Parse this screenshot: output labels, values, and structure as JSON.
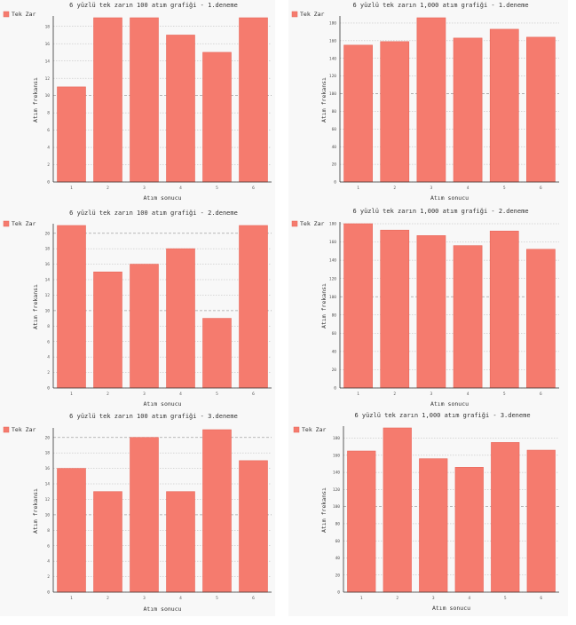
{
  "colors": {
    "bar": "#f57b6e",
    "bar_stroke": "#e8685b",
    "grid": "#9a9a9a",
    "axis": "#333333",
    "panel": "#f8f8f8"
  },
  "chart_data": [
    {
      "type": "bar",
      "title": "6 yüzlü tek zarın 100 atım grafiği - 1.deneme",
      "xlabel": "Atım sonucu",
      "ylabel": "Atım frekansı",
      "legend": "Tek Zar",
      "legend_position": "top-left",
      "categories": [
        "1",
        "2",
        "3",
        "4",
        "5",
        "6"
      ],
      "values": [
        11,
        19,
        19,
        17,
        15,
        19
      ],
      "ylim": [
        0,
        19
      ],
      "yticks": [
        0,
        2,
        4,
        6,
        8,
        10,
        12,
        14,
        16,
        18
      ],
      "ytick_labels": [
        "0",
        "2",
        "4",
        "6",
        "8",
        "10",
        "12",
        "14",
        "16",
        "18"
      ],
      "grid": true
    },
    {
      "type": "bar",
      "title": "6 yüzlü tek zarın 1,000 atım grafiği - 1.deneme",
      "xlabel": "Atım sonucu",
      "ylabel": "Atım frekansı",
      "legend": "Tek Zar",
      "legend_position": "top-left",
      "categories": [
        "1",
        "2",
        "3",
        "4",
        "5",
        "6"
      ],
      "values": [
        155,
        159,
        186,
        163,
        173,
        164
      ],
      "ylim": [
        0,
        186
      ],
      "yticks": [
        0,
        20,
        40,
        60,
        80,
        100,
        120,
        140,
        160,
        180
      ],
      "ytick_labels": [
        "0",
        "20",
        "40",
        "60",
        "80",
        "100",
        "120",
        "140",
        "160",
        "180"
      ],
      "grid": true
    },
    {
      "type": "bar",
      "title": "6 yüzlü tek zarın 100 atım grafiği - 2.deneme",
      "xlabel": "Atım sonucu",
      "ylabel": "Atım frekansı",
      "legend": "Tek Zar",
      "legend_position": "top-left",
      "categories": [
        "1",
        "2",
        "3",
        "4",
        "5",
        "6"
      ],
      "values": [
        21,
        15,
        16,
        18,
        9,
        21
      ],
      "ylim": [
        0,
        21
      ],
      "yticks": [
        0,
        2,
        4,
        6,
        8,
        10,
        12,
        14,
        16,
        18,
        20
      ],
      "ytick_labels": [
        "0",
        "2",
        "4",
        "6",
        "8",
        "10",
        "12",
        "14",
        "16",
        "18",
        "20"
      ],
      "grid": true
    },
    {
      "type": "bar",
      "title": "6 yüzlü tek zarın 1,000 atım grafiği - 2.deneme",
      "xlabel": "Atım sonucu",
      "ylabel": "Atım frekansı",
      "legend": "Tek Zar",
      "legend_position": "top-left",
      "categories": [
        "1",
        "2",
        "3",
        "4",
        "5",
        "6"
      ],
      "values": [
        180,
        173,
        167,
        156,
        172,
        152
      ],
      "ylim": [
        0,
        180
      ],
      "yticks": [
        0,
        20,
        40,
        60,
        80,
        100,
        120,
        140,
        160,
        180
      ],
      "ytick_labels": [
        "0",
        "20",
        "40",
        "60",
        "80",
        "100",
        "120",
        "140",
        "160",
        "180"
      ],
      "grid": true
    },
    {
      "type": "bar",
      "title": "6 yüzlü tek zarın 100 atım grafiği - 3.deneme",
      "xlabel": "Atım sonucu",
      "ylabel": "Atım frekansı",
      "legend": "Tek Zar",
      "legend_position": "top-left",
      "categories": [
        "1",
        "2",
        "3",
        "4",
        "5",
        "6"
      ],
      "values": [
        16,
        13,
        20,
        13,
        21,
        17
      ],
      "ylim": [
        0,
        21
      ],
      "yticks": [
        0,
        2,
        4,
        6,
        8,
        10,
        12,
        14,
        16,
        18,
        20
      ],
      "ytick_labels": [
        "0",
        "2",
        "4",
        "6",
        "8",
        "10",
        "12",
        "14",
        "16",
        "18",
        "20"
      ],
      "grid": true
    },
    {
      "type": "bar",
      "title": "6 yüzlü tek zarın 1,000 atım grafiği - 3.deneme",
      "xlabel": "Atım sonucu",
      "ylabel": "Atım frekansı",
      "legend": "Tek Zar",
      "legend_position": "top-left",
      "categories": [
        "1",
        "2",
        "3",
        "4",
        "5",
        "6"
      ],
      "values": [
        165,
        192,
        156,
        146,
        175,
        166
      ],
      "ylim": [
        0,
        192
      ],
      "yticks": [
        0,
        20,
        40,
        60,
        80,
        100,
        120,
        140,
        160,
        180
      ],
      "ytick_labels": [
        "0",
        "20",
        "40",
        "60",
        "80",
        "100",
        "120",
        "140",
        "160",
        "180"
      ],
      "grid": true
    }
  ]
}
